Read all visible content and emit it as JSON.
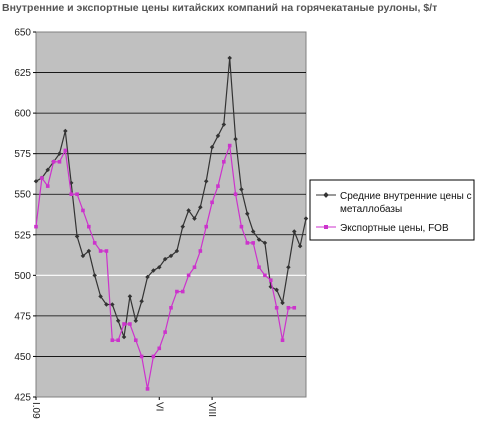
{
  "chart_data": {
    "type": "line",
    "title": "Внутренние и экспортные цены китайских компаний на горячекатаные рулоны, $/т",
    "xlabel": "",
    "ylabel": "",
    "ylim": [
      425,
      650
    ],
    "yticks": [
      425,
      450,
      475,
      500,
      525,
      550,
      575,
      600,
      625,
      650
    ],
    "x_tick_labels": [
      {
        "label": "I.09",
        "index": 0
      },
      {
        "label": "VI",
        "index": 21
      },
      {
        "label": "VIII",
        "index": 30
      }
    ],
    "grid": "horizontal",
    "legend_placement": "right",
    "plot_background": "#c0c0c0",
    "series": [
      {
        "name": "Средние внутренние цены с металлобазы",
        "color": "#333333",
        "marker": "diamond",
        "values": [
          558,
          560,
          565,
          570,
          575,
          589,
          557,
          524,
          512,
          515,
          500,
          487,
          482,
          482,
          472,
          462,
          487,
          472,
          484,
          499,
          503,
          505,
          510,
          512,
          515,
          530,
          540,
          535,
          542,
          558,
          579,
          586,
          593,
          634,
          584,
          553,
          538,
          527,
          522,
          520,
          493,
          491,
          483,
          505,
          527,
          518,
          535
        ]
      },
      {
        "name": "Экспортные цены, FOB",
        "color": "#cc33cc",
        "marker": "square",
        "values": [
          530,
          560,
          555,
          570,
          570,
          577,
          550,
          550,
          540,
          530,
          520,
          515,
          515,
          460,
          460,
          470,
          470,
          460,
          450,
          430,
          450,
          455,
          465,
          480,
          490,
          490,
          500,
          505,
          515,
          530,
          545,
          555,
          570,
          580,
          550,
          530,
          520,
          520,
          505,
          500,
          497,
          480,
          460,
          480,
          480
        ]
      }
    ]
  }
}
